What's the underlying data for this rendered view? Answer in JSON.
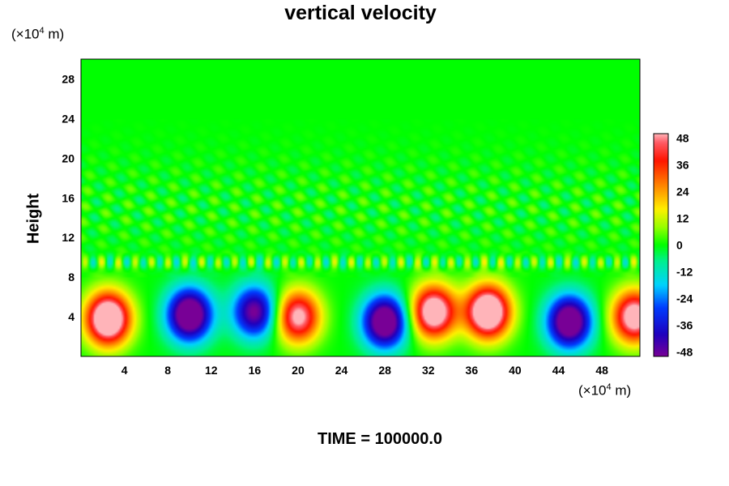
{
  "chart_data": {
    "type": "heatmap",
    "title": "vertical velocity",
    "ylabel": "Height",
    "y_unit": {
      "prefix": "(×10",
      "exp": "4",
      "suffix": " m)"
    },
    "x_unit": {
      "prefix": "(×10",
      "exp": "4",
      "suffix": " m)"
    },
    "xlim": [
      0,
      51.5
    ],
    "ylim": [
      0,
      30
    ],
    "x_ticks": [
      4,
      8,
      12,
      16,
      20,
      24,
      28,
      32,
      36,
      40,
      44,
      48
    ],
    "y_ticks": [
      4,
      8,
      12,
      16,
      20,
      24,
      28
    ],
    "colorbar": {
      "range": [
        -50,
        50
      ],
      "ticks": [
        48,
        36,
        24,
        12,
        0,
        -12,
        -24,
        -36,
        -48
      ]
    },
    "features": [
      {
        "x": 2.5,
        "y": 3.8,
        "value": 55
      },
      {
        "x": 10,
        "y": 4.2,
        "value": -50
      },
      {
        "x": 16,
        "y": 4.5,
        "value": -38
      },
      {
        "x": 20,
        "y": 4.0,
        "value": 40
      },
      {
        "x": 28,
        "y": 3.5,
        "value": -48
      },
      {
        "x": 32.5,
        "y": 4.5,
        "value": 48
      },
      {
        "x": 37.5,
        "y": 4.5,
        "value": 55
      },
      {
        "x": 45,
        "y": 3.5,
        "value": -48
      },
      {
        "x": 51,
        "y": 4.0,
        "value": 45
      }
    ],
    "time_prefix": "TIME = ",
    "time": "100000.0"
  }
}
